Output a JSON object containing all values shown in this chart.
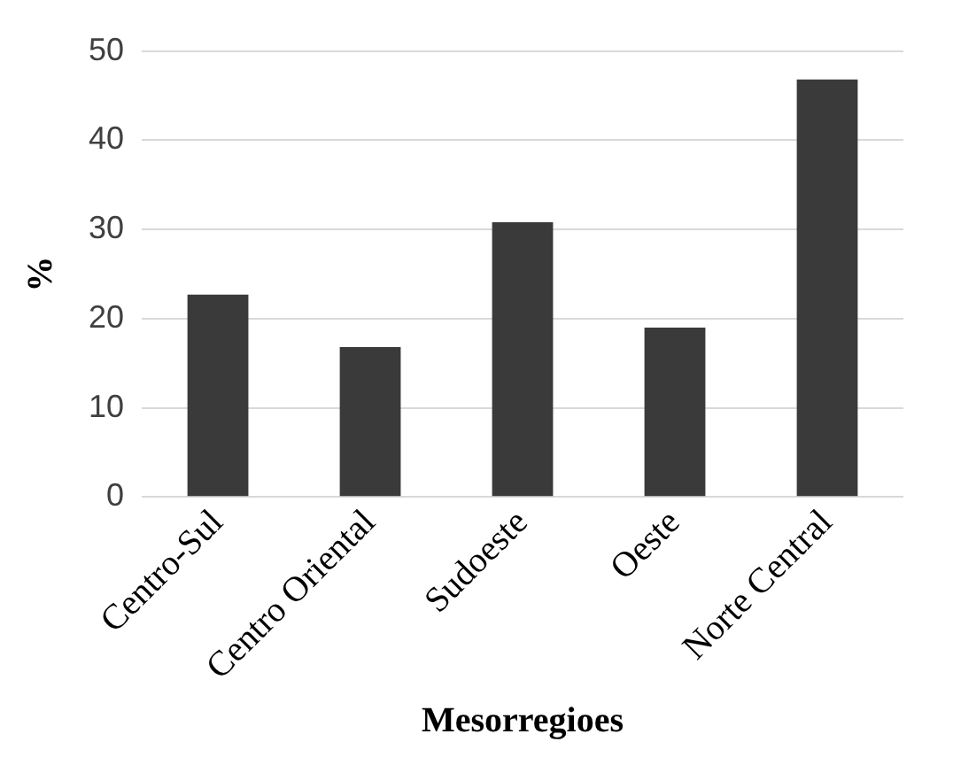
{
  "chart_data": {
    "type": "bar",
    "xlabel": "Mesorregioes",
    "ylabel": "%",
    "categories": [
      "Centro-Sul",
      "Centro Oriental",
      "Sudoeste",
      "Oeste",
      "Norte Central"
    ],
    "values": [
      22.7,
      16.8,
      30.8,
      19.0,
      46.8
    ],
    "color": "#3a3a3a",
    "ylim": [
      0,
      50
    ],
    "yticks": [
      0,
      10,
      20,
      30,
      40,
      50
    ],
    "grid": "y"
  }
}
